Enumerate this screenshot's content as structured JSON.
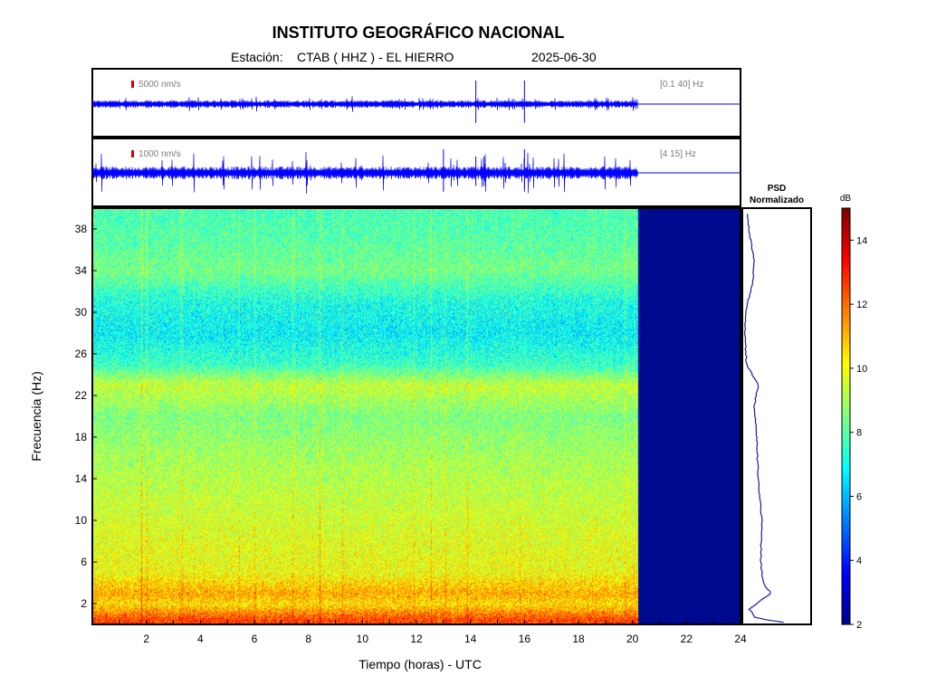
{
  "header": {
    "title": "INSTITUTO GEOGRÁFICO NACIONAL",
    "station_label": "Estación:",
    "station": "CTAB ( HHZ ) - EL HIERRO",
    "date": "2025-06-30"
  },
  "colors": {
    "trace": "#0000ff",
    "no_data": "#000a8f",
    "scale_mark": "#d00000",
    "psd_line": "#1a1aa8"
  },
  "chart_data": [
    {
      "type": "line",
      "name": "waveform-broadband",
      "scale_label": "5000 nm/s",
      "band_label": "[0.1 40] Hz",
      "x_range": [
        0,
        24
      ],
      "data_end_hour": 20.2,
      "spikes_hours": [
        14.2,
        16.0
      ]
    },
    {
      "type": "line",
      "name": "waveform-filtered",
      "scale_label": "1000 nm/s",
      "band_label": "[4 15] Hz",
      "x_range": [
        0,
        24
      ],
      "data_end_hour": 20.2,
      "spikes_hours": [
        13.0,
        14.2,
        14.5,
        16.0
      ]
    },
    {
      "type": "heatmap",
      "name": "spectrogram",
      "xlabel": "Tiempo (horas) - UTC",
      "ylabel": "Frecuencia  (Hz)",
      "xlim": [
        0,
        24
      ],
      "ylim": [
        0,
        40
      ],
      "x_ticks": [
        2,
        4,
        6,
        8,
        10,
        12,
        14,
        16,
        18,
        20,
        22,
        24
      ],
      "y_ticks": [
        2,
        6,
        10,
        14,
        18,
        22,
        26,
        30,
        34,
        38
      ],
      "data_end_hour": 20.2,
      "frequency_profile_db": [
        {
          "f": 0.5,
          "db": 12.5
        },
        {
          "f": 2,
          "db": 10.5
        },
        {
          "f": 3,
          "db": 11.2
        },
        {
          "f": 5,
          "db": 10.0
        },
        {
          "f": 8,
          "db": 9.8
        },
        {
          "f": 12,
          "db": 9.4
        },
        {
          "f": 16,
          "db": 9.0
        },
        {
          "f": 20,
          "db": 8.5
        },
        {
          "f": 23,
          "db": 9.4
        },
        {
          "f": 25,
          "db": 7.6
        },
        {
          "f": 28,
          "db": 6.8
        },
        {
          "f": 31,
          "db": 7.2
        },
        {
          "f": 34,
          "db": 8.4
        },
        {
          "f": 37,
          "db": 8.0
        },
        {
          "f": 40,
          "db": 7.8
        }
      ]
    },
    {
      "type": "line",
      "name": "psd",
      "title_line1": "PSD",
      "title_line2": "Normalizado",
      "ylim": [
        0,
        40
      ],
      "profile": [
        {
          "f": 0.2,
          "v": 0.62
        },
        {
          "f": 0.6,
          "v": 0.18
        },
        {
          "f": 1.5,
          "v": 0.08
        },
        {
          "f": 3,
          "v": 0.42
        },
        {
          "f": 4,
          "v": 0.3
        },
        {
          "f": 6,
          "v": 0.26
        },
        {
          "f": 10,
          "v": 0.28
        },
        {
          "f": 14,
          "v": 0.22
        },
        {
          "f": 18,
          "v": 0.2
        },
        {
          "f": 21,
          "v": 0.16
        },
        {
          "f": 23,
          "v": 0.22
        },
        {
          "f": 25,
          "v": 0.04
        },
        {
          "f": 28,
          "v": 0.01
        },
        {
          "f": 30,
          "v": 0.02
        },
        {
          "f": 33,
          "v": 0.14
        },
        {
          "f": 35,
          "v": 0.16
        },
        {
          "f": 37,
          "v": 0.1
        },
        {
          "f": 39,
          "v": 0.05
        }
      ]
    },
    {
      "type": "heatmap",
      "name": "colorbar",
      "unit": "dB",
      "ylim": [
        2,
        15
      ],
      "ticks": [
        2,
        4,
        6,
        8,
        10,
        12,
        14
      ]
    }
  ]
}
